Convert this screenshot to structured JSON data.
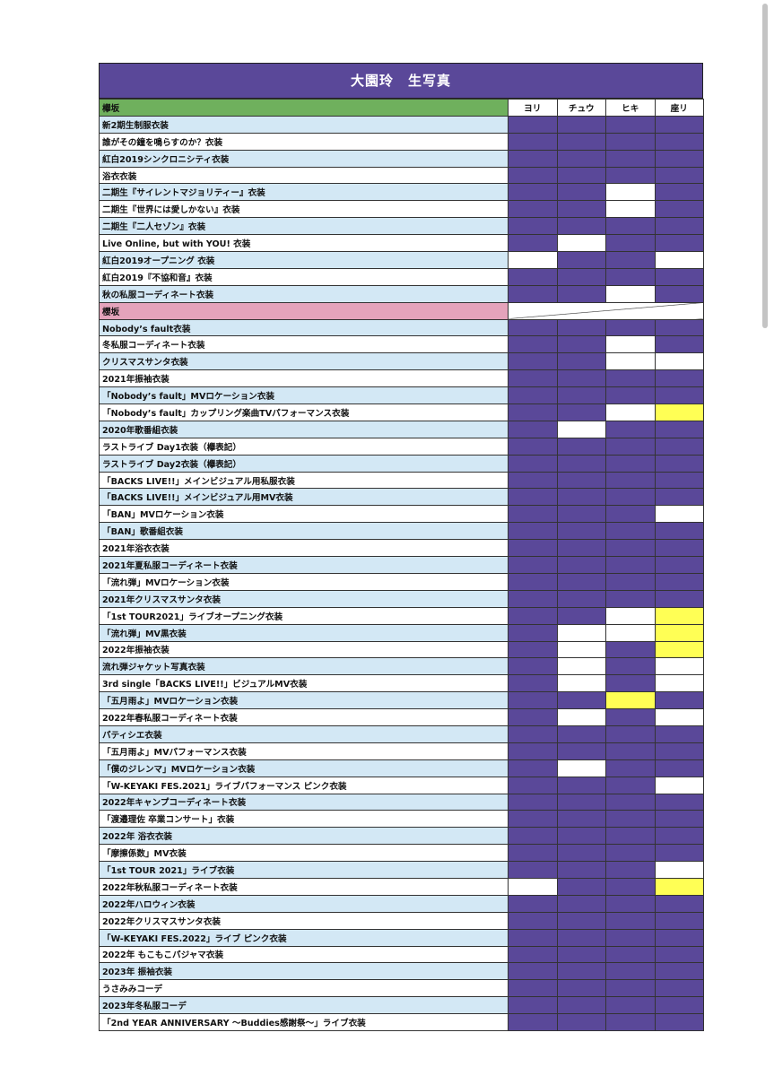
{
  "title": "大園玲　生写真",
  "columns": [
    "ヨリ",
    "チュウ",
    "ヒキ",
    "座リ"
  ],
  "colors": {
    "owned": "#5a4899",
    "missing": "#ffffff",
    "highlight": "#ffff55",
    "keyaki_section": "#6fb05d",
    "sakura_section": "#e4a3bb",
    "row_shade": "#d3e8f5"
  },
  "legend_codes": {
    "P": "owned (purple fill)",
    "W": "empty (white)",
    "Y": "yellow fill"
  },
  "sections": [
    {
      "name": "欅坂",
      "color": "green",
      "rows": [
        {
          "name": "新2期生制服衣装",
          "cells": [
            "P",
            "P",
            "P",
            "P"
          ]
        },
        {
          "name": "誰がその鐘を鳴らすのか？衣装",
          "cells": [
            "P",
            "P",
            "P",
            "P"
          ]
        },
        {
          "name": "紅白2019シンクロニシティ衣装",
          "cells": [
            "P",
            "P",
            "P",
            "P"
          ]
        },
        {
          "name": "浴衣衣装",
          "cells": [
            "P",
            "P",
            "P",
            "P"
          ]
        },
        {
          "name": "二期生『サイレントマジョリティー』衣装",
          "cells": [
            "P",
            "P",
            "W",
            "P"
          ]
        },
        {
          "name": "二期生『世界には愛しかない』衣装",
          "cells": [
            "P",
            "P",
            "W",
            "P"
          ]
        },
        {
          "name": "二期生『二人セゾン』衣装",
          "cells": [
            "P",
            "P",
            "P",
            "P"
          ]
        },
        {
          "name": "Live Online, but with YOU! 衣装",
          "cells": [
            "P",
            "W",
            "P",
            "P"
          ]
        },
        {
          "name": "紅白2019オープニング 衣装",
          "cells": [
            "W",
            "P",
            "P",
            "W"
          ]
        },
        {
          "name": "紅白2019『不協和音』衣装",
          "cells": [
            "P",
            "P",
            "P",
            "P"
          ]
        },
        {
          "name": "秋の私服コーディネート衣装",
          "cells": [
            "P",
            "P",
            "W",
            "P"
          ]
        }
      ]
    },
    {
      "name": "櫻坂",
      "color": "pink",
      "rows": [
        {
          "name": "Nobody’s fault衣装",
          "cells": [
            "P",
            "P",
            "P",
            "P"
          ]
        },
        {
          "name": "冬私服コーディネート衣装",
          "cells": [
            "P",
            "P",
            "W",
            "P"
          ]
        },
        {
          "name": "クリスマスサンタ衣装",
          "cells": [
            "P",
            "P",
            "W",
            "W"
          ]
        },
        {
          "name": "2021年振袖衣装",
          "cells": [
            "P",
            "P",
            "P",
            "P"
          ]
        },
        {
          "name": "「Nobody’s fault」MVロケーション衣装",
          "cells": [
            "P",
            "P",
            "P",
            "P"
          ]
        },
        {
          "name": "「Nobody’s fault」カップリング楽曲TVパフォーマンス衣装",
          "cells": [
            "P",
            "P",
            "W",
            "Y"
          ]
        },
        {
          "name": "2020年歌番組衣装",
          "cells": [
            "P",
            "W",
            "P",
            "P"
          ]
        },
        {
          "name": "ラストライブ Day1衣装（欅表記）",
          "cells": [
            "P",
            "P",
            "P",
            "P"
          ]
        },
        {
          "name": "ラストライブ Day2衣装（欅表記）",
          "cells": [
            "P",
            "P",
            "P",
            "P"
          ]
        },
        {
          "name": "「BACKS LIVE!!」メインビジュアル用私服衣装",
          "cells": [
            "P",
            "P",
            "P",
            "P"
          ]
        },
        {
          "name": "「BACKS LIVE!!」メインビジュアル用MV衣装",
          "cells": [
            "P",
            "P",
            "P",
            "P"
          ]
        },
        {
          "name": "「BAN」MVロケーション衣装",
          "cells": [
            "P",
            "P",
            "P",
            "W"
          ]
        },
        {
          "name": "「BAN」歌番組衣装",
          "cells": [
            "P",
            "P",
            "P",
            "P"
          ]
        },
        {
          "name": "2021年浴衣衣装",
          "cells": [
            "P",
            "P",
            "P",
            "P"
          ]
        },
        {
          "name": "2021年夏私服コーディネート衣装",
          "cells": [
            "P",
            "P",
            "P",
            "P"
          ]
        },
        {
          "name": "「流れ弾」MVロケーション衣装",
          "cells": [
            "P",
            "P",
            "P",
            "P"
          ]
        },
        {
          "name": "2021年クリスマスサンタ衣装",
          "cells": [
            "P",
            "P",
            "P",
            "P"
          ]
        },
        {
          "name": "「1st TOUR2021」ライブオープニング衣装",
          "cells": [
            "P",
            "P",
            "W",
            "Y"
          ]
        },
        {
          "name": "「流れ弾」MV黒衣装",
          "cells": [
            "P",
            "W",
            "W",
            "Y"
          ]
        },
        {
          "name": "2022年振袖衣装",
          "cells": [
            "P",
            "W",
            "P",
            "Y"
          ]
        },
        {
          "name": "流れ弾ジャケット写真衣装",
          "cells": [
            "P",
            "W",
            "P",
            "W"
          ]
        },
        {
          "name": "3rd single「BACKS LIVE!!」ビジュアルMV衣装",
          "cells": [
            "P",
            "W",
            "P",
            "W"
          ]
        },
        {
          "name": "「五月雨よ」MVロケーション衣装",
          "cells": [
            "P",
            "P",
            "Y",
            "P"
          ]
        },
        {
          "name": "2022年春私服コーディネート衣装",
          "cells": [
            "P",
            "W",
            "P",
            "W"
          ]
        },
        {
          "name": "パティシエ衣装",
          "cells": [
            "P",
            "P",
            "P",
            "P"
          ]
        },
        {
          "name": "「五月雨よ」MVパフォーマンス衣装",
          "cells": [
            "P",
            "P",
            "P",
            "P"
          ]
        },
        {
          "name": "「僕のジレンマ」MVロケーション衣装",
          "cells": [
            "P",
            "W",
            "P",
            "P"
          ]
        },
        {
          "name": "「W-KEYAKI FES.2021」ライブパフォーマンス ピンク衣装",
          "cells": [
            "P",
            "P",
            "P",
            "W"
          ]
        },
        {
          "name": "2022年キャンプコーディネート衣装",
          "cells": [
            "P",
            "P",
            "P",
            "P"
          ]
        },
        {
          "name": "「渡邉理佐 卒業コンサート」衣装",
          "cells": [
            "P",
            "P",
            "P",
            "P"
          ]
        },
        {
          "name": "2022年 浴衣衣装",
          "cells": [
            "P",
            "P",
            "P",
            "P"
          ]
        },
        {
          "name": "「摩擦係数」MV衣装",
          "cells": [
            "P",
            "P",
            "P",
            "P"
          ]
        },
        {
          "name": "「1st TOUR 2021」ライブ衣装",
          "cells": [
            "P",
            "P",
            "P",
            "W"
          ]
        },
        {
          "name": "2022年秋私服コーディネート衣装",
          "cells": [
            "W",
            "P",
            "P",
            "Y"
          ]
        },
        {
          "name": "2022年ハロウィン衣装",
          "cells": [
            "P",
            "P",
            "P",
            "P"
          ]
        },
        {
          "name": "2022年クリスマスサンタ衣装",
          "cells": [
            "P",
            "P",
            "P",
            "P"
          ]
        },
        {
          "name": "「W-KEYAKI FES.2022」ライブ ピンク衣装",
          "cells": [
            "P",
            "P",
            "P",
            "P"
          ]
        },
        {
          "name": "2022年 もこもこパジャマ衣装",
          "cells": [
            "P",
            "P",
            "P",
            "P"
          ]
        },
        {
          "name": "2023年 振袖衣装",
          "cells": [
            "P",
            "P",
            "P",
            "P"
          ]
        },
        {
          "name": "うさみみコーデ",
          "cells": [
            "P",
            "P",
            "P",
            "P"
          ]
        },
        {
          "name": "2023年冬私服コーデ",
          "cells": [
            "P",
            "P",
            "P",
            "P"
          ]
        },
        {
          "name": "「2nd YEAR ANNIVERSARY 〜Buddies感謝祭〜」ライブ衣装",
          "cells": [
            "P",
            "P",
            "P",
            "P"
          ]
        }
      ]
    }
  ]
}
